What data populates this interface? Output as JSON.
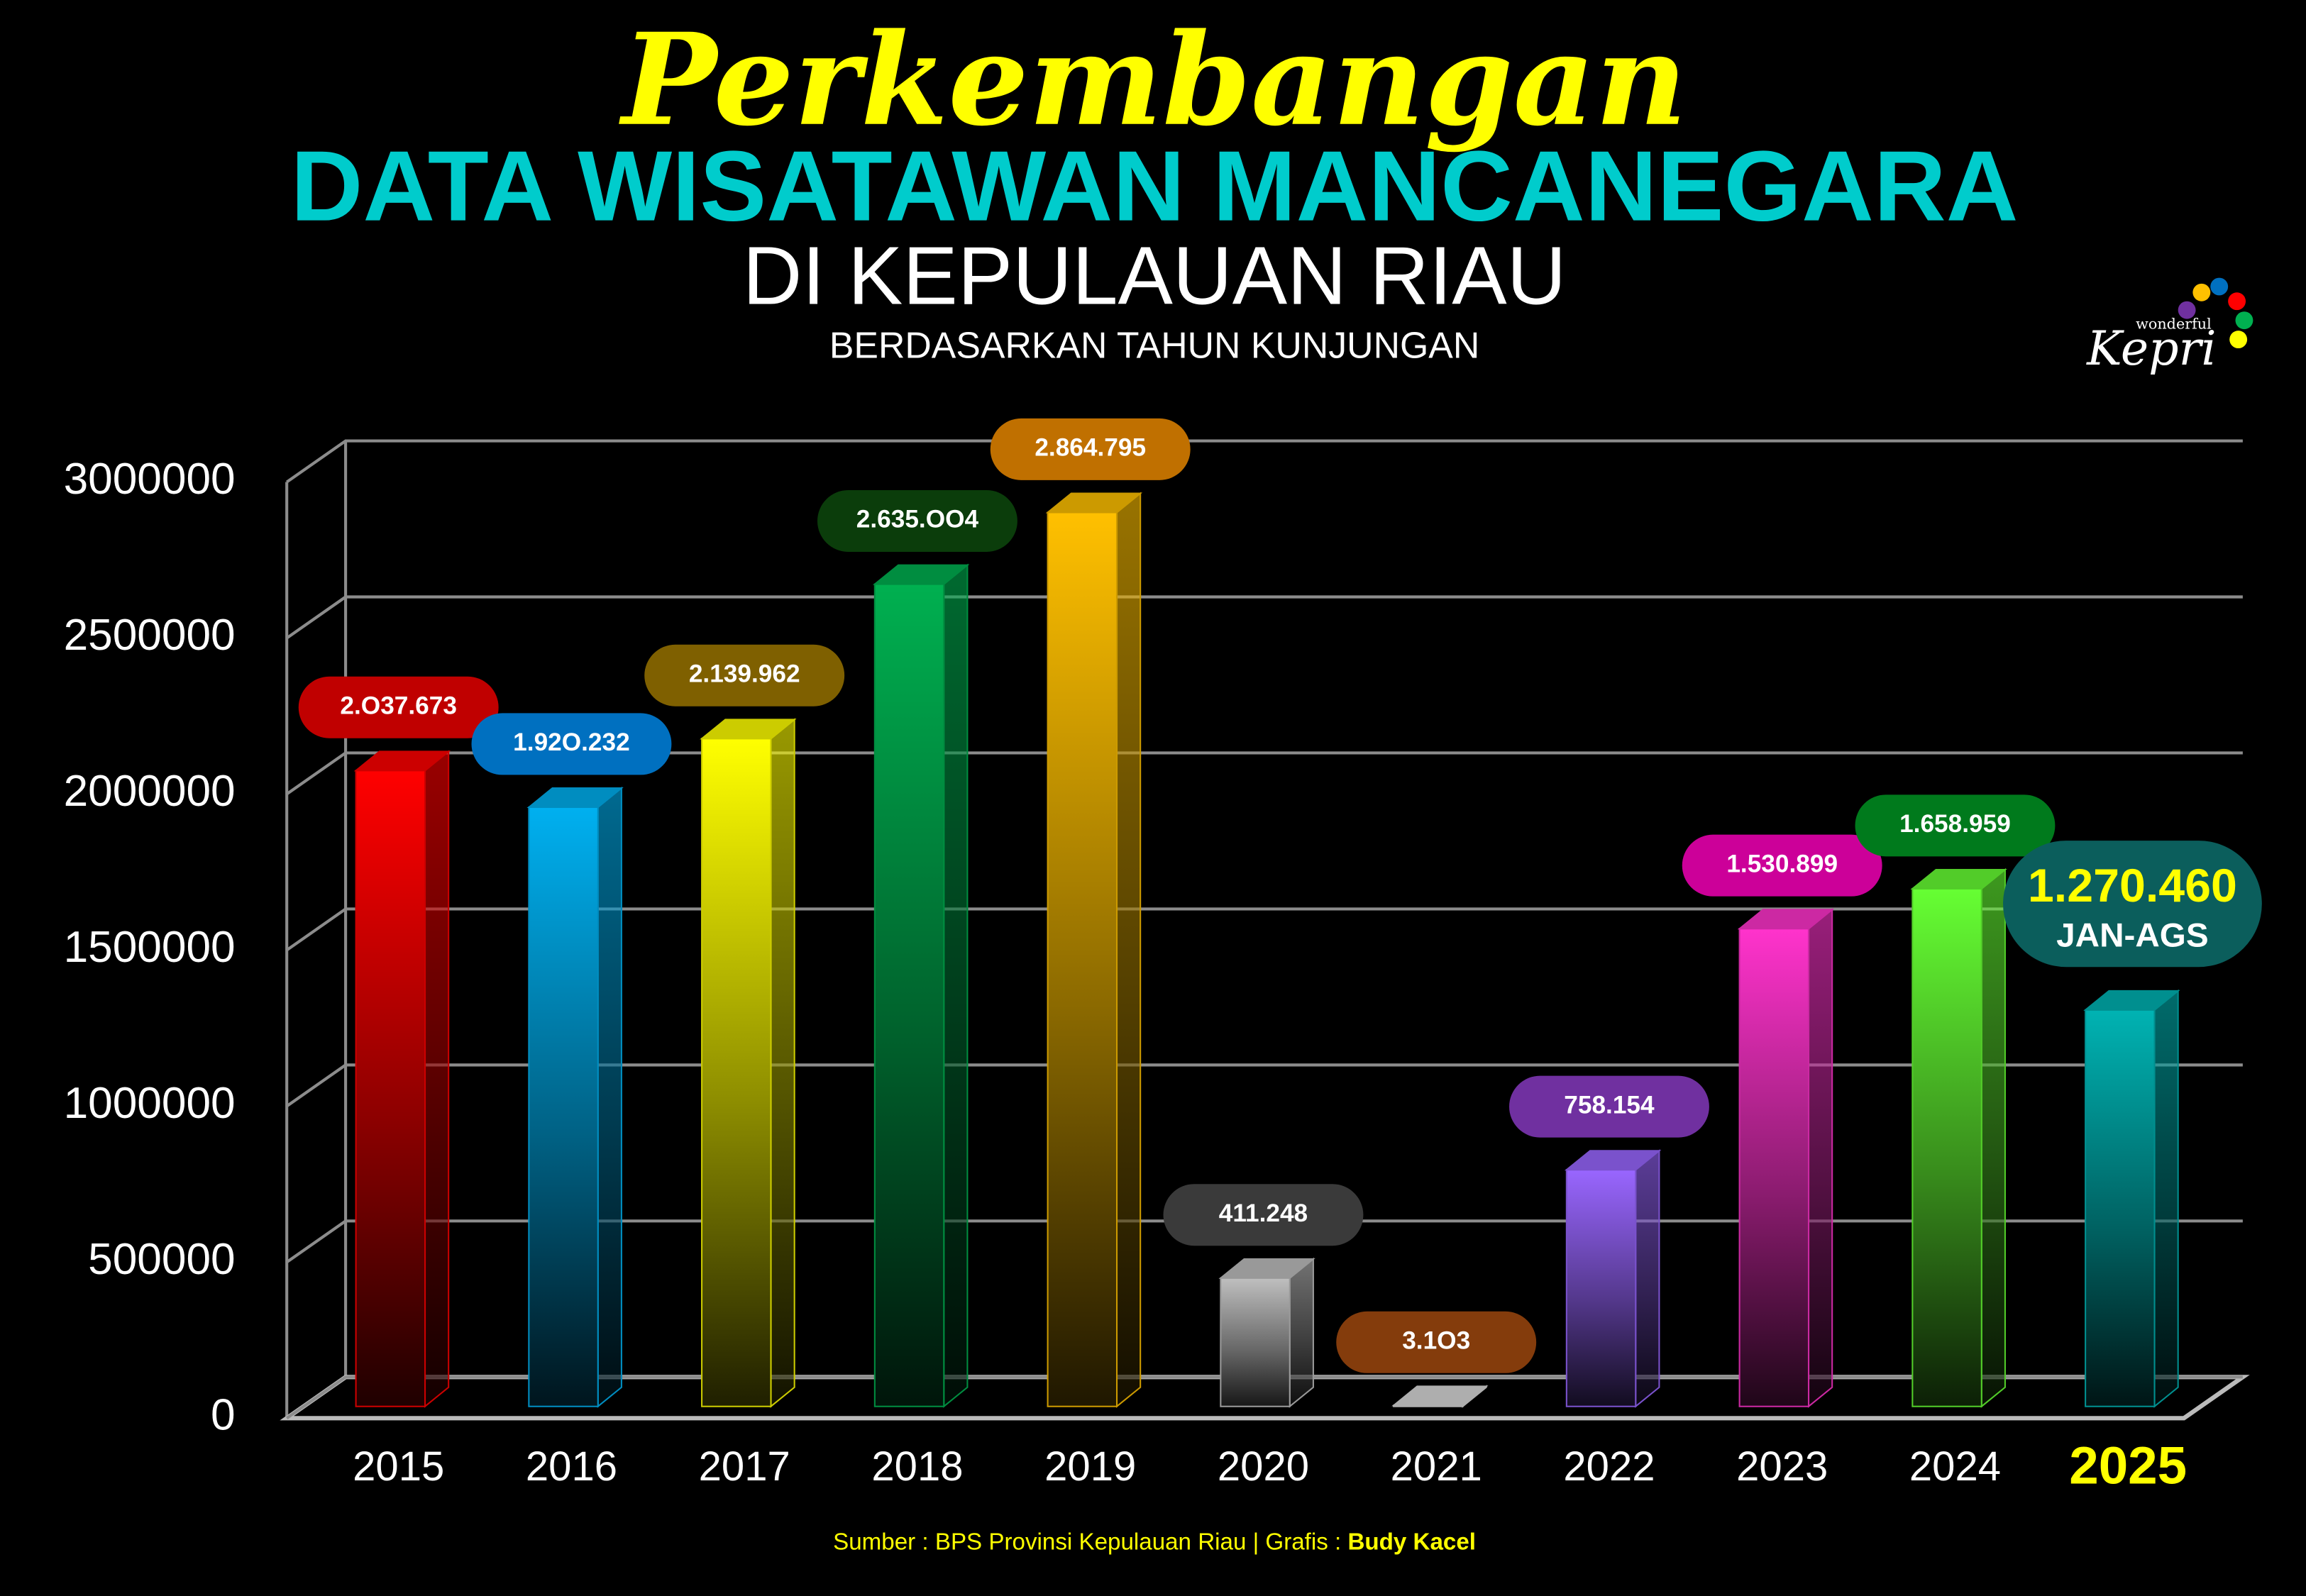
{
  "chart_data": {
    "type": "bar",
    "title": "Perkembangan",
    "subtitle": [
      "DATA WISATAWAN MANCANEGARA",
      "DI KEPULAUAN RIAU",
      "BERDASARKAN TAHUN KUNJUNGAN"
    ],
    "categories": [
      "2015",
      "2016",
      "2017",
      "2018",
      "2019",
      "2020",
      "2021",
      "2022",
      "2023",
      "2024",
      "2025"
    ],
    "values": [
      2037673,
      1920232,
      2139962,
      2635004,
      2864795,
      411248,
      3103,
      758154,
      1530899,
      1658959,
      1270460
    ],
    "value_labels": [
      "2.O37.673",
      "1.92O.232",
      "2.139.962",
      "2.635.OO4",
      "2.864.795",
      "411.248",
      "3.1O3",
      "758.154",
      "1.530.899",
      "1.658.959",
      "1.270.460"
    ],
    "colors": [
      "#ff0000",
      "#00b0f0",
      "#ffff00",
      "#00b050",
      "#ffc000",
      "#bfbfbf",
      "#d9d9d9",
      "#9966ff",
      "#ff33cc",
      "#66ff33",
      "#00b3b3"
    ],
    "label_colors": [
      "#c00000",
      "#0070c0",
      "#7f6000",
      "#0b3d0b",
      "#c07000",
      "#3a3a3a",
      "#843c0c",
      "#7030a0",
      "#cc0099",
      "#007a1c",
      "#0b5e5c"
    ],
    "highlight_index": 10,
    "highlight_color": "#ffff00",
    "annotation": "JAN-AGS",
    "ylim": [
      0,
      3000000
    ],
    "yticks": [
      0,
      500000,
      1000000,
      1500000,
      2000000,
      2500000,
      3000000
    ],
    "grid": true
  },
  "source": "Sumber : BPS Provinsi Kepulauan Riau  |  Grafis : ",
  "author": "Budy Kacel",
  "logo": {
    "top": "wonderful",
    "main": "Kepri"
  }
}
